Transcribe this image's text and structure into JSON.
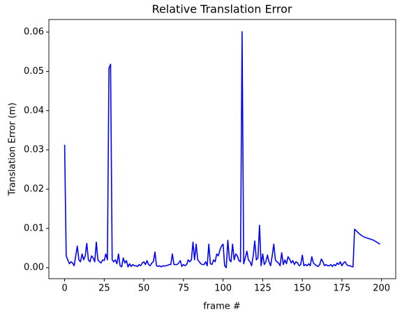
{
  "chart_data": {
    "type": "line",
    "title": "Relative Translation Error",
    "xlabel": "frame #",
    "ylabel": "Translation Error (m)",
    "color": "#0000ff",
    "x": [
      0,
      1,
      2,
      3,
      4,
      5,
      6,
      7,
      8,
      9,
      10,
      11,
      12,
      13,
      14,
      15,
      16,
      17,
      18,
      19,
      20,
      21,
      22,
      23,
      24,
      25,
      26,
      27,
      28,
      29,
      30,
      31,
      32,
      33,
      34,
      35,
      36,
      37,
      38,
      39,
      40,
      41,
      42,
      43,
      44,
      45,
      46,
      47,
      48,
      49,
      50,
      51,
      52,
      53,
      54,
      55,
      56,
      57,
      58,
      59,
      60,
      61,
      62,
      63,
      64,
      65,
      66,
      67,
      68,
      69,
      70,
      71,
      72,
      73,
      74,
      75,
      76,
      77,
      78,
      79,
      80,
      81,
      82,
      83,
      84,
      85,
      86,
      87,
      88,
      89,
      90,
      91,
      92,
      93,
      94,
      95,
      96,
      97,
      98,
      99,
      100,
      101,
      102,
      103,
      104,
      105,
      106,
      107,
      108,
      109,
      110,
      111,
      112,
      113,
      114,
      115,
      116,
      117,
      118,
      119,
      120,
      121,
      122,
      123,
      124,
      125,
      126,
      127,
      128,
      129,
      130,
      131,
      132,
      133,
      134,
      135,
      136,
      137,
      138,
      139,
      140,
      141,
      142,
      143,
      144,
      145,
      146,
      147,
      148,
      149,
      150,
      151,
      152,
      153,
      154,
      155,
      156,
      157,
      158,
      159,
      160,
      161,
      162,
      163,
      164,
      165,
      166,
      167,
      168,
      169,
      170,
      171,
      172,
      173,
      174,
      175,
      176,
      177,
      178,
      179,
      180,
      181,
      182,
      183,
      185,
      187,
      189,
      192,
      195,
      199
    ],
    "values": [
      0.0313,
      0.003,
      0.002,
      0.001,
      0.0015,
      0.0012,
      0.0005,
      0.003,
      0.0055,
      0.002,
      0.0015,
      0.0035,
      0.002,
      0.003,
      0.0062,
      0.002,
      0.0015,
      0.003,
      0.0025,
      0.0015,
      0.0065,
      0.002,
      0.0015,
      0.0012,
      0.002,
      0.0018,
      0.0035,
      0.002,
      0.0508,
      0.0518,
      0.002,
      0.0015,
      0.002,
      0.001,
      0.0035,
      0.0005,
      0.0002,
      0.0025,
      0.0012,
      0.0018,
      0.0002,
      0.001,
      0.0003,
      0.0008,
      0.0005,
      0.0005,
      0.0003,
      0.0008,
      0.0005,
      0.0012,
      0.0015,
      0.0008,
      0.0018,
      0.0008,
      0.0005,
      0.0012,
      0.0015,
      0.004,
      0.0005,
      0.0003,
      0.0005,
      0.0002,
      0.0005,
      0.0004,
      0.0005,
      0.0006,
      0.0008,
      0.0008,
      0.0035,
      0.0008,
      0.0008,
      0.0008,
      0.0012,
      0.0018,
      0.0003,
      0.0008,
      0.0005,
      0.0008,
      0.002,
      0.0015,
      0.002,
      0.0065,
      0.002,
      0.006,
      0.002,
      0.0015,
      0.001,
      0.0008,
      0.0008,
      0.0015,
      0.0005,
      0.006,
      0.001,
      0.0008,
      0.002,
      0.0015,
      0.0035,
      0.003,
      0.0045,
      0.0055,
      0.006,
      0.0005,
      0.0,
      0.007,
      0.002,
      0.0015,
      0.006,
      0.002,
      0.0035,
      0.003,
      0.0018,
      0.0015,
      0.0601,
      0.001,
      0.0025,
      0.0042,
      0.002,
      0.0015,
      0.0005,
      0.003,
      0.0068,
      0.002,
      0.0025,
      0.0108,
      0.0005,
      0.0035,
      0.0008,
      0.0015,
      0.0032,
      0.0015,
      0.0005,
      0.003,
      0.006,
      0.002,
      0.0015,
      0.0012,
      0.0005,
      0.0038,
      0.0008,
      0.002,
      0.001,
      0.0028,
      0.0022,
      0.0012,
      0.0018,
      0.0008,
      0.0015,
      0.0012,
      0.0005,
      0.0008,
      0.0032,
      0.0005,
      0.0008,
      0.0005,
      0.001,
      0.0005,
      0.0028,
      0.0012,
      0.0008,
      0.0005,
      0.0003,
      0.0008,
      0.0022,
      0.0015,
      0.0005,
      0.0008,
      0.0005,
      0.0005,
      0.0008,
      0.0003,
      0.0008,
      0.0005,
      0.0012,
      0.0008,
      0.0015,
      0.0005,
      0.0012,
      0.0015,
      0.0008,
      0.0005,
      0.0005,
      0.0003,
      0.0002,
      0.0098,
      0.009,
      0.0083,
      0.0078,
      0.0074,
      0.007,
      0.006
    ],
    "xlim": [
      -9.95,
      208.95
    ],
    "xticks": [
      0,
      25,
      50,
      75,
      100,
      125,
      150,
      175,
      200
    ],
    "ylim": [
      -0.0028,
      0.0632
    ],
    "yticks": [
      {
        "value": 0,
        "label": "0.00"
      },
      0.01,
      0.02,
      0.03,
      0.04,
      0.05,
      0.06
    ]
  }
}
